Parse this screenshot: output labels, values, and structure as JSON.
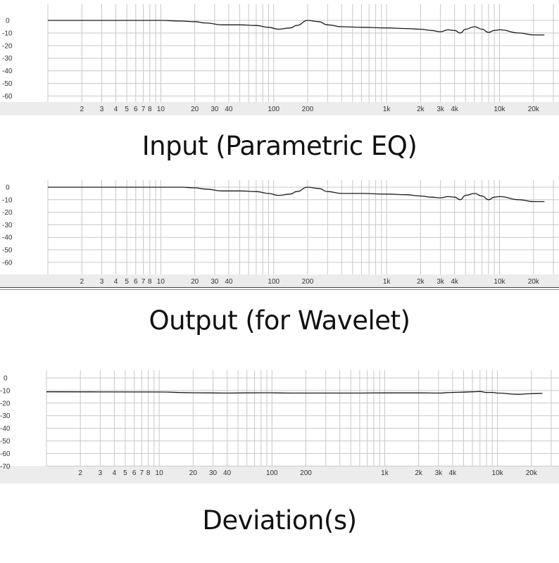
{
  "captions": {
    "input": "Input (Parametric EQ)",
    "output": "Output (for Wavelet)",
    "deviation": "Deviation(s)"
  },
  "colors": {
    "grid": "#c8c8c8",
    "axis_strip": "#ececec",
    "curve": "#1a1a1a",
    "tick_text": "#333333"
  },
  "chart_data": [
    {
      "type": "line",
      "title": "",
      "xscale": "log",
      "xlim": [
        1,
        30000
      ],
      "ylim": [
        -65,
        10
      ],
      "yticks": [
        0,
        -10,
        -20,
        -30,
        -40,
        -50,
        -60
      ],
      "xticks": [
        {
          "v": 2,
          "l": "2"
        },
        {
          "v": 3,
          "l": "3"
        },
        {
          "v": 4,
          "l": "4"
        },
        {
          "v": 5,
          "l": "5"
        },
        {
          "v": 6,
          "l": "6"
        },
        {
          "v": 7,
          "l": "7"
        },
        {
          "v": 8,
          "l": "8"
        },
        {
          "v": 10,
          "l": "10"
        },
        {
          "v": 20,
          "l": "20"
        },
        {
          "v": 30,
          "l": "30"
        },
        {
          "v": 40,
          "l": "40"
        },
        {
          "v": 100,
          "l": "100"
        },
        {
          "v": 200,
          "l": "200"
        },
        {
          "v": 1000,
          "l": "1k"
        },
        {
          "v": 2000,
          "l": "2k"
        },
        {
          "v": 3000,
          "l": "3k"
        },
        {
          "v": 4000,
          "l": "4k"
        },
        {
          "v": 10000,
          "l": "10k"
        },
        {
          "v": 20000,
          "l": "20k"
        }
      ],
      "series": [
        {
          "x": [
            1,
            5,
            10,
            15,
            20,
            25,
            35,
            50,
            70,
            90,
            110,
            140,
            160,
            200,
            250,
            300,
            400,
            600,
            1000,
            1500,
            2000,
            2500,
            3000,
            3500,
            4000,
            4500,
            5000,
            6000,
            7000,
            8000,
            9000,
            10000,
            15000,
            20000,
            25000
          ],
          "y": [
            0,
            0,
            0,
            -0.5,
            -1,
            -2,
            -3.5,
            -3.5,
            -4,
            -5.5,
            -7,
            -6,
            -4,
            0,
            -1,
            -3.5,
            -5,
            -5.5,
            -6,
            -6.5,
            -7,
            -8,
            -9,
            -7.5,
            -8,
            -10,
            -7,
            -5,
            -7,
            -9.5,
            -8,
            -7.5,
            -10,
            -11.5,
            -11.5
          ]
        }
      ]
    },
    {
      "type": "line",
      "title": "",
      "xscale": "log",
      "xlim": [
        1,
        30000
      ],
      "ylim": [
        -65,
        5
      ],
      "yticks": [
        0,
        -10,
        -20,
        -30,
        -40,
        -50,
        -60
      ],
      "xticks": [
        {
          "v": 2,
          "l": "2"
        },
        {
          "v": 3,
          "l": "3"
        },
        {
          "v": 4,
          "l": "4"
        },
        {
          "v": 5,
          "l": "5"
        },
        {
          "v": 6,
          "l": "6"
        },
        {
          "v": 7,
          "l": "7"
        },
        {
          "v": 8,
          "l": "8"
        },
        {
          "v": 10,
          "l": "10"
        },
        {
          "v": 20,
          "l": "20"
        },
        {
          "v": 30,
          "l": "30"
        },
        {
          "v": 40,
          "l": "40"
        },
        {
          "v": 100,
          "l": "100"
        },
        {
          "v": 200,
          "l": "200"
        },
        {
          "v": 1000,
          "l": "1k"
        },
        {
          "v": 2000,
          "l": "2k"
        },
        {
          "v": 3000,
          "l": "3k"
        },
        {
          "v": 4000,
          "l": "4k"
        },
        {
          "v": 10000,
          "l": "10k"
        },
        {
          "v": 20000,
          "l": "20k"
        }
      ],
      "series": [
        {
          "x": [
            1,
            5,
            10,
            15,
            20,
            25,
            35,
            50,
            70,
            90,
            110,
            140,
            160,
            200,
            250,
            300,
            400,
            600,
            1000,
            1500,
            2000,
            2500,
            3000,
            3500,
            4000,
            4500,
            5000,
            6000,
            7000,
            8000,
            9000,
            10000,
            15000,
            20000,
            25000
          ],
          "y": [
            0,
            0,
            0,
            0,
            -0.5,
            -1.5,
            -3,
            -3,
            -3.5,
            -5,
            -6.5,
            -5.5,
            -3.5,
            0,
            -1,
            -3.5,
            -5,
            -5,
            -5.5,
            -6,
            -7,
            -8,
            -8.5,
            -7.5,
            -8,
            -10,
            -6.5,
            -5,
            -7,
            -10,
            -8,
            -7.5,
            -10,
            -11.5,
            -11.5
          ]
        }
      ]
    },
    {
      "type": "line",
      "title": "",
      "xscale": "log",
      "xlim": [
        1,
        30000
      ],
      "ylim": [
        -72,
        6
      ],
      "yticks": [
        0,
        -10,
        -20,
        -30,
        -40,
        -50,
        -60,
        -70
      ],
      "xticks": [
        {
          "v": 2,
          "l": "2"
        },
        {
          "v": 3,
          "l": "3"
        },
        {
          "v": 4,
          "l": "4"
        },
        {
          "v": 5,
          "l": "5"
        },
        {
          "v": 6,
          "l": "6"
        },
        {
          "v": 7,
          "l": "7"
        },
        {
          "v": 8,
          "l": "8"
        },
        {
          "v": 10,
          "l": "10"
        },
        {
          "v": 20,
          "l": "20"
        },
        {
          "v": 30,
          "l": "30"
        },
        {
          "v": 40,
          "l": "40"
        },
        {
          "v": 100,
          "l": "100"
        },
        {
          "v": 200,
          "l": "200"
        },
        {
          "v": 1000,
          "l": "1k"
        },
        {
          "v": 2000,
          "l": "2k"
        },
        {
          "v": 3000,
          "l": "3k"
        },
        {
          "v": 4000,
          "l": "4k"
        },
        {
          "v": 10000,
          "l": "10k"
        },
        {
          "v": 20000,
          "l": "20k"
        }
      ],
      "series": [
        {
          "x": [
            1,
            10,
            20,
            40,
            80,
            150,
            300,
            600,
            1000,
            2000,
            3000,
            4000,
            5000,
            6000,
            7000,
            8000,
            9000,
            10000,
            15000,
            20000,
            25000
          ],
          "y": [
            -11,
            -11.2,
            -11.8,
            -12,
            -11.8,
            -12,
            -12,
            -12,
            -11.9,
            -11.9,
            -12,
            -11.5,
            -11.3,
            -11,
            -10.8,
            -11.5,
            -11.5,
            -12,
            -13,
            -12.5,
            -12.3
          ]
        }
      ]
    }
  ]
}
